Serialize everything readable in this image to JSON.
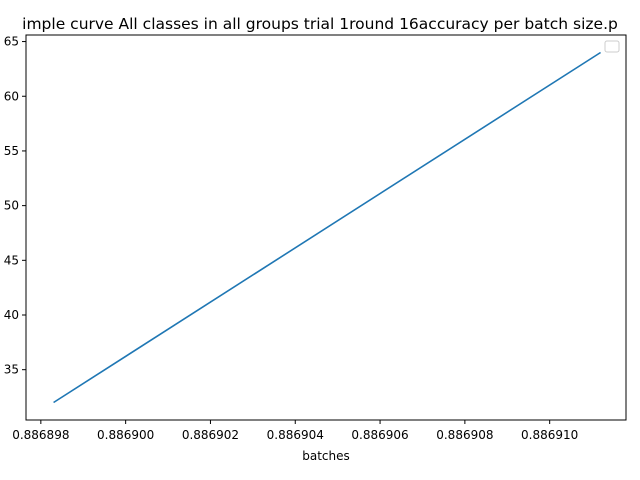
{
  "chart_data": {
    "type": "line",
    "title": "imple curve All classes in all groups trial 1round 16accuracy per batch size.p",
    "xlabel": "batches",
    "ylabel": "",
    "x_ticks": [
      "0.886898",
      "0.886900",
      "0.886902",
      "0.886904",
      "0.886906",
      "0.886908",
      "0.886910"
    ],
    "x_tick_values": [
      0.886898,
      0.8869,
      0.886902,
      0.886904,
      0.886906,
      0.886908,
      0.88691
    ],
    "y_ticks": [
      "35",
      "40",
      "45",
      "50",
      "55",
      "60",
      "65"
    ],
    "y_tick_values": [
      35,
      40,
      45,
      50,
      55,
      60,
      65
    ],
    "xlim": [
      0.88689765,
      0.8869118
    ],
    "ylim": [
      30.4,
      65.6
    ],
    "legend": {
      "placement": "top-right",
      "entries": []
    },
    "grid": false,
    "series": [
      {
        "color": "#1f77b4",
        "x": [
          0.8868983,
          0.8869112
        ],
        "y": [
          32,
          64
        ]
      }
    ]
  }
}
